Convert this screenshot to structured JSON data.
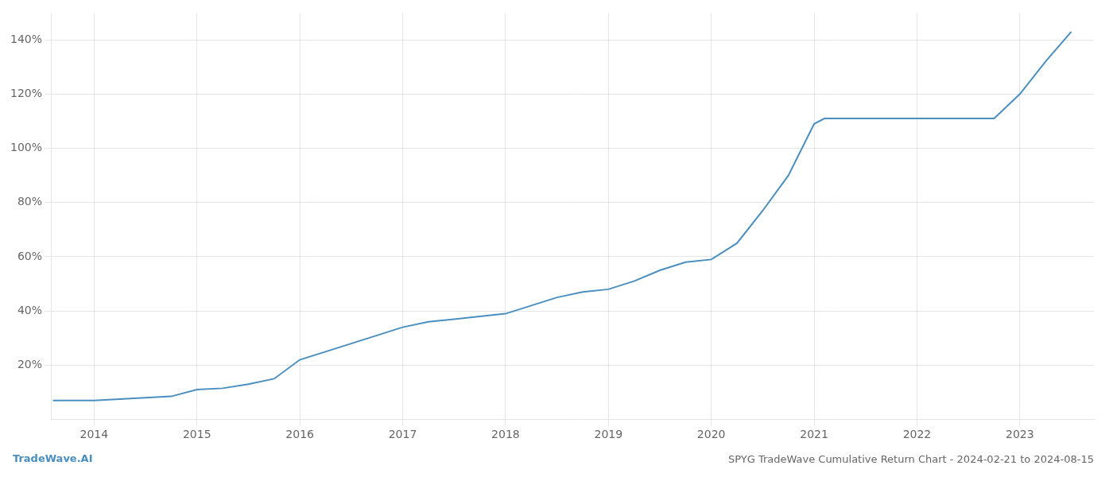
{
  "chart_data": {
    "type": "line",
    "title": "SPYG TradeWave Cumulative Return Chart - 2024-02-21 to 2024-08-15",
    "annotations": [
      "TradeWave.AI"
    ],
    "color": "#4a8fc0",
    "x": [
      2013.6,
      2014.0,
      2014.25,
      2014.5,
      2014.75,
      2015.0,
      2015.25,
      2015.5,
      2015.75,
      2016.0,
      2016.25,
      2016.5,
      2016.75,
      2017.0,
      2017.25,
      2017.5,
      2017.75,
      2018.0,
      2018.25,
      2018.5,
      2018.75,
      2019.0,
      2019.25,
      2019.5,
      2019.75,
      2020.0,
      2020.25,
      2020.5,
      2020.75,
      2021.0,
      2021.1,
      2021.25,
      2021.5,
      2021.75,
      2022.0,
      2022.25,
      2022.5,
      2022.6,
      2022.75,
      2023.0,
      2023.25,
      2023.5
    ],
    "values": [
      7,
      7,
      7.5,
      8,
      8.5,
      11,
      11.5,
      13,
      15,
      22,
      25,
      28,
      31,
      34,
      36,
      37,
      38,
      39,
      42,
      45,
      47,
      48,
      51,
      55,
      58,
      59,
      65,
      77,
      90,
      109,
      111,
      111,
      111,
      111,
      111,
      111,
      111,
      111,
      111,
      120,
      132,
      143
    ],
    "xlim": [
      2013.58,
      2023.72
    ],
    "xticks": [
      2014,
      2015,
      2016,
      2017,
      2018,
      2019,
      2020,
      2021,
      2022,
      2023
    ],
    "ylim": [
      0,
      150
    ],
    "yticks": [
      {
        "value": 20,
        "label": "20%"
      },
      {
        "value": 40,
        "label": "40%"
      },
      {
        "value": 60,
        "label": "60%"
      },
      {
        "value": 80,
        "label": "80%"
      },
      {
        "value": 100,
        "label": "100%"
      },
      {
        "value": 120,
        "label": "120%"
      },
      {
        "value": 140,
        "label": "140%"
      }
    ],
    "grid": true
  }
}
